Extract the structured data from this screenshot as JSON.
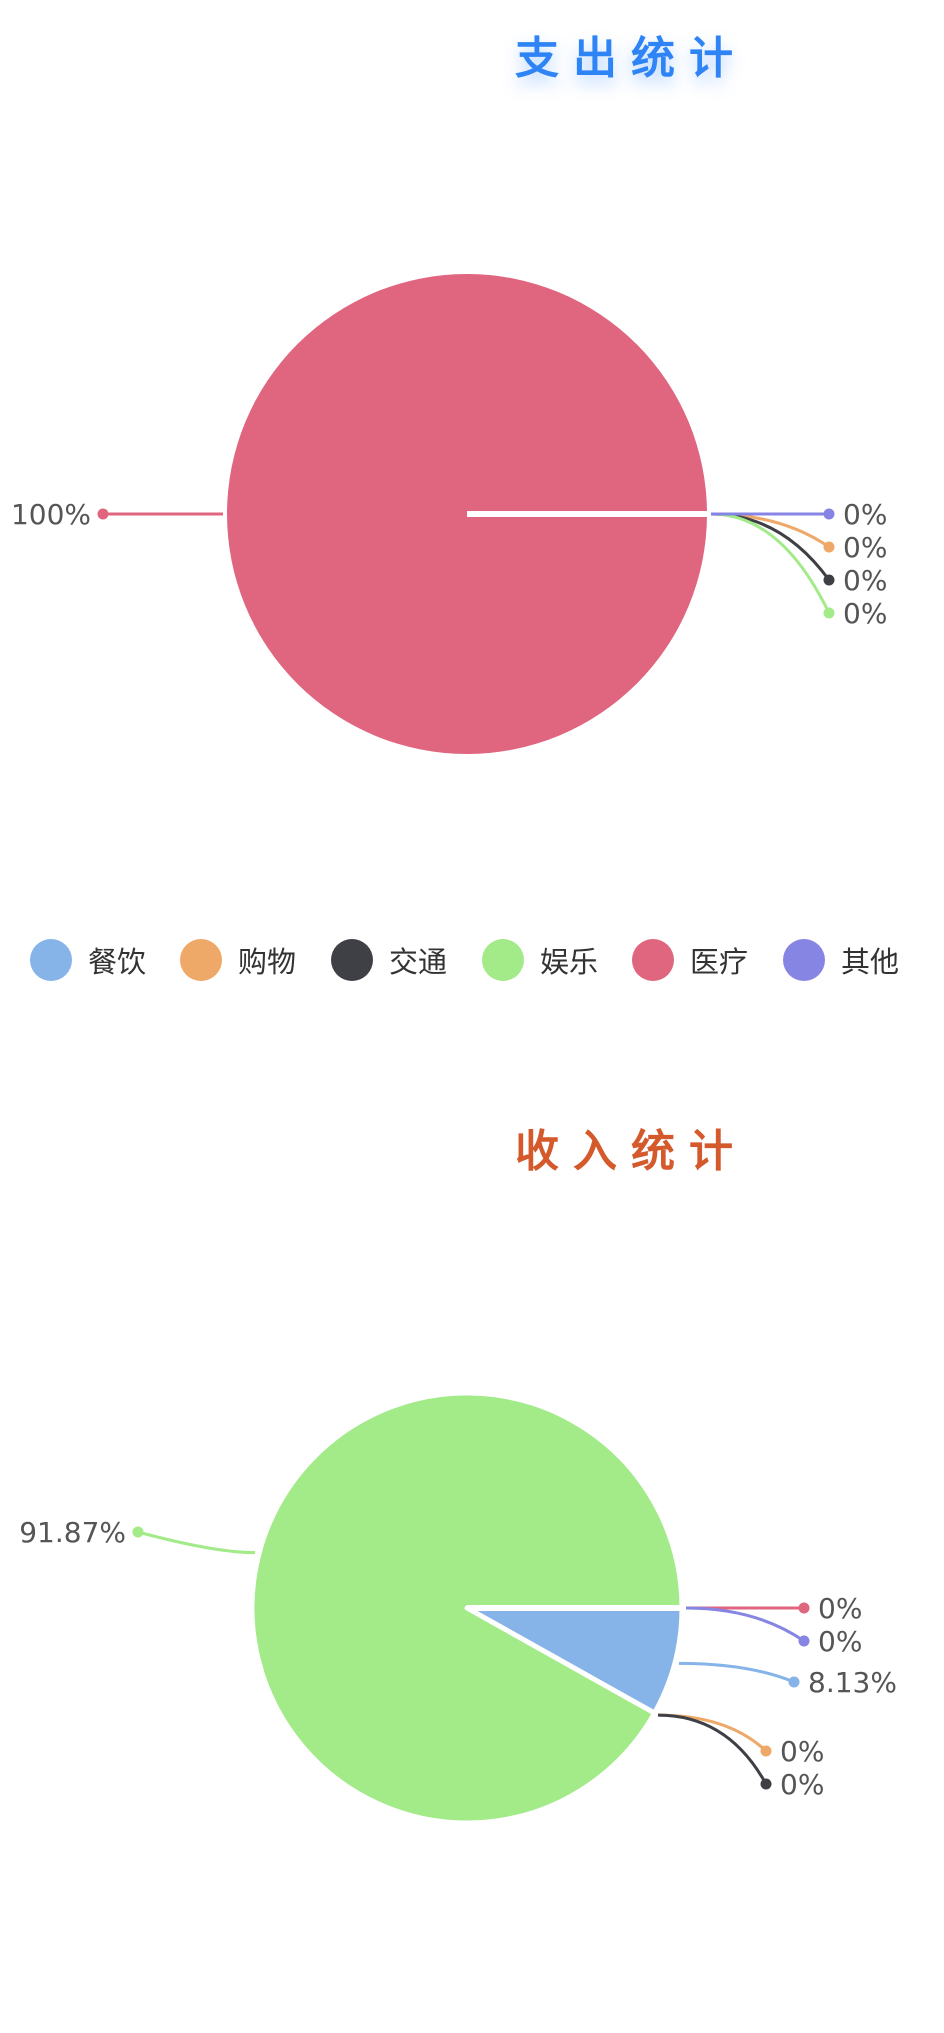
{
  "colors": {
    "expense_title": "#2E84F5",
    "income_title": "#D45A2C"
  },
  "charts": {
    "expense": {
      "title": "支出统计"
    },
    "income": {
      "title": "收入统计"
    }
  },
  "legend": [
    {
      "label": "餐饮",
      "color": "#87B4E8"
    },
    {
      "label": "购物",
      "color": "#EEA868"
    },
    {
      "label": "交通",
      "color": "#3F3F46"
    },
    {
      "label": "娱乐",
      "color": "#A3EA89"
    },
    {
      "label": "医疗",
      "color": "#E0667F"
    },
    {
      "label": "其他",
      "color": "#8785E4"
    }
  ],
  "chart_data": [
    {
      "type": "pie",
      "title": "支出统计",
      "series": [
        {
          "name": "餐饮",
          "value": 0,
          "label": "0%",
          "color": "#87B4E8"
        },
        {
          "name": "购物",
          "value": 0,
          "label": "0%",
          "color": "#EEA868"
        },
        {
          "name": "交通",
          "value": 0,
          "label": "0%",
          "color": "#3F3F46"
        },
        {
          "name": "娱乐",
          "value": 0,
          "label": "0%",
          "color": "#A3EA89"
        },
        {
          "name": "医疗",
          "value": 100,
          "label": "100%",
          "color": "#E0667F"
        },
        {
          "name": "其他",
          "value": 0,
          "label": "0%",
          "color": "#8785E4"
        }
      ]
    },
    {
      "type": "pie",
      "title": "收入统计",
      "series": [
        {
          "name": "餐饮",
          "value": 8.13,
          "label": "8.13%",
          "color": "#87B4E8"
        },
        {
          "name": "购物",
          "value": 0,
          "label": "0%",
          "color": "#EEA868"
        },
        {
          "name": "交通",
          "value": 0,
          "label": "0%",
          "color": "#3F3F46"
        },
        {
          "name": "娱乐",
          "value": 91.87,
          "label": "91.87%",
          "color": "#A3EA89"
        },
        {
          "name": "医疗",
          "value": 0,
          "label": "0%",
          "color": "#E0667F"
        },
        {
          "name": "其他",
          "value": 0,
          "label": "0%",
          "color": "#8785E4"
        }
      ]
    }
  ]
}
